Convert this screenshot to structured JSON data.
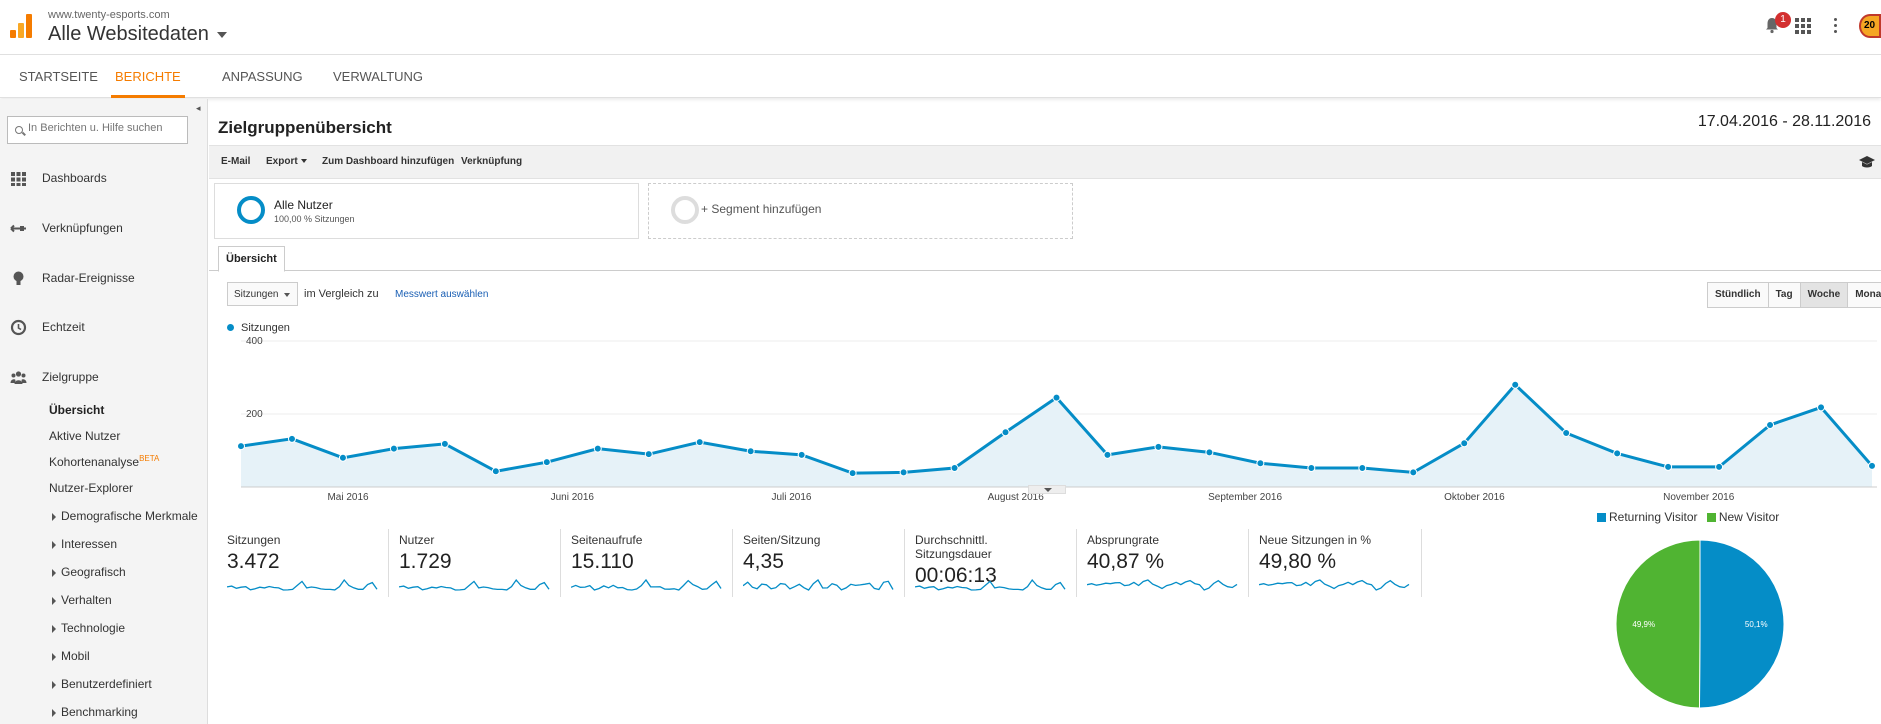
{
  "header": {
    "site_url": "www.twenty-esports.com",
    "property": "Alle Websitedaten",
    "notification_count": "1",
    "avatar_text": "20"
  },
  "nav": {
    "tabs": [
      {
        "label": "STARTSEITE"
      },
      {
        "label": "BERICHTE"
      },
      {
        "label": "ANPASSUNG"
      },
      {
        "label": "VERWALTUNG"
      }
    ],
    "active": "BERICHTE"
  },
  "sidebar": {
    "search_placeholder": "In Berichten u. Hilfe suchen",
    "items": [
      {
        "label": "Dashboards",
        "icon": "grid-icon"
      },
      {
        "label": "Verknüpfungen",
        "icon": "arrows-icon"
      },
      {
        "label": "Radar-Ereignisse",
        "icon": "bulb-icon"
      },
      {
        "label": "Echtzeit",
        "icon": "clock-icon"
      },
      {
        "label": "Zielgruppe",
        "icon": "people-icon"
      }
    ],
    "subitems": [
      {
        "label": "Übersicht"
      },
      {
        "label": "Aktive Nutzer"
      },
      {
        "label": "Kohortenanalyse",
        "badge": "BETA"
      },
      {
        "label": "Nutzer-Explorer"
      },
      {
        "label": "Demografische Merkmale"
      },
      {
        "label": "Interessen"
      },
      {
        "label": "Geografisch"
      },
      {
        "label": "Verhalten"
      },
      {
        "label": "Technologie"
      },
      {
        "label": "Mobil"
      },
      {
        "label": "Benutzerdefiniert"
      },
      {
        "label": "Benchmarking"
      }
    ]
  },
  "page": {
    "title": "Zielgruppenübersicht",
    "date_range": "17.04.2016 - 28.11.2016",
    "toolbar": {
      "email": "E-Mail",
      "export": "Export",
      "dashboard": "Zum Dashboard hinzufügen",
      "shortcut": "Verknüpfung"
    },
    "segments": {
      "active_name": "Alle Nutzer",
      "active_sub": "100,00 % Sitzungen",
      "add": "+ Segment hinzufügen"
    },
    "tab": "Übersicht",
    "metric_select": "Sitzungen",
    "compare_label": "im Vergleich zu",
    "compare_link": "Messwert auswählen",
    "periods": [
      "Stündlich",
      "Tag",
      "Woche",
      "Monat"
    ],
    "active_period": "Woche"
  },
  "chart_data": [
    {
      "type": "line",
      "series": [
        {
          "name": "Sitzungen",
          "values": [
            112,
            132,
            80,
            105,
            118,
            43,
            68,
            105,
            90,
            123,
            98,
            88,
            38,
            40,
            52,
            150,
            245,
            88,
            110,
            95,
            65,
            52,
            52,
            40,
            120,
            280,
            148,
            92,
            55,
            55,
            170,
            218,
            58
          ]
        }
      ],
      "x_tick_labels": [
        "Mai 2016",
        "Juni 2016",
        "Juli 2016",
        "August 2016",
        "September 2016",
        "Oktober 2016",
        "November 2016"
      ],
      "y_ticks": [
        200,
        400
      ],
      "ylim": [
        0,
        400
      ],
      "color": "#058dc7"
    },
    {
      "type": "pie",
      "slices": [
        {
          "name": "Returning Visitor",
          "value": 50.1,
          "label": "50,1%",
          "color": "#058dc7"
        },
        {
          "name": "New Visitor",
          "value": 49.9,
          "label": "49,9%",
          "color": "#50b432"
        }
      ]
    }
  ],
  "metrics": [
    {
      "label": "Sitzungen",
      "value": "3.472"
    },
    {
      "label": "Nutzer",
      "value": "1.729"
    },
    {
      "label": "Seitenaufrufe",
      "value": "15.110"
    },
    {
      "label": "Seiten/Sitzung",
      "value": "4,35"
    },
    {
      "label": "Durchschnittl. Sitzungsdauer",
      "value": "00:06:13"
    },
    {
      "label": "Absprungrate",
      "value": "40,87 %"
    },
    {
      "label": "Neue Sitzungen in %",
      "value": "49,80 %"
    }
  ]
}
